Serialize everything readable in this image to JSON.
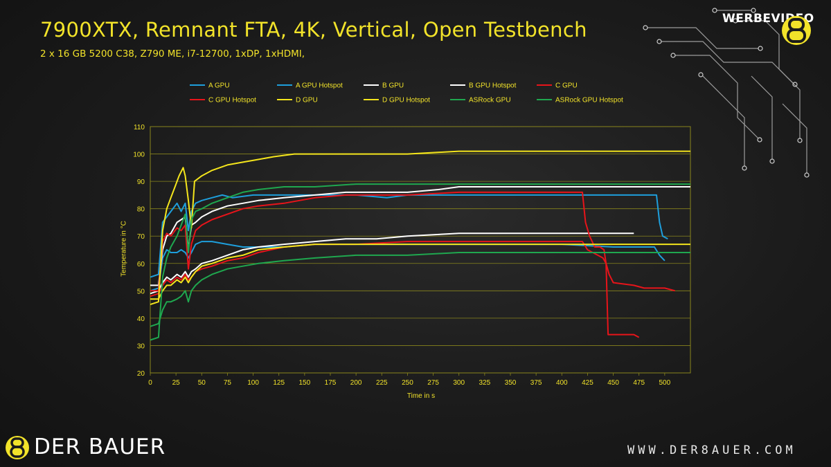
{
  "header": {
    "title": "7900XTX, Remnant FTA, 4K, Vertical, Open Testbench",
    "subtitle": "2 x 16 GB 5200 C38, Z790 ME, i7-12700, 1xDP, 1xHDMI,"
  },
  "watermark": {
    "channel_text": "WERBEVIDEO"
  },
  "footer": {
    "brand_name": "DER BAUER",
    "site": "WWW.DER8AUER.COM"
  },
  "colors": {
    "accent": "#f2e32a",
    "a_gpu": "#1e9fdc",
    "b_gpu": "#ffffff",
    "c_gpu": "#e8141a",
    "d_gpu": "#f5e61c",
    "asrock_gpu": "#1fa84f",
    "grid": "#8a861c"
  },
  "chart_data": {
    "type": "line",
    "title": "",
    "xlabel": "Time in s",
    "ylabel": "Temperature in °C",
    "xlim": [
      0,
      525
    ],
    "ylim": [
      20,
      110
    ],
    "xticks": [
      0,
      25,
      50,
      75,
      100,
      125,
      150,
      175,
      200,
      225,
      250,
      275,
      300,
      325,
      350,
      375,
      400,
      425,
      450,
      475,
      500
    ],
    "yticks": [
      20,
      30,
      40,
      50,
      60,
      70,
      80,
      90,
      100,
      110
    ],
    "grid": "horizontal",
    "legend_position": "top",
    "series": [
      {
        "name": "A GPU",
        "color": "#1e9fdc",
        "dash": false,
        "points": [
          [
            0,
            50
          ],
          [
            8,
            51
          ],
          [
            12,
            62
          ],
          [
            16,
            65
          ],
          [
            20,
            64
          ],
          [
            26,
            64
          ],
          [
            30,
            65
          ],
          [
            34,
            64
          ],
          [
            37,
            62
          ],
          [
            40,
            64
          ],
          [
            44,
            67
          ],
          [
            50,
            68
          ],
          [
            60,
            68
          ],
          [
            75,
            67
          ],
          [
            90,
            66
          ],
          [
            105,
            66
          ],
          [
            130,
            66
          ],
          [
            160,
            67
          ],
          [
            200,
            67
          ],
          [
            250,
            67
          ],
          [
            300,
            67
          ],
          [
            400,
            67
          ],
          [
            450,
            66
          ],
          [
            490,
            66
          ],
          [
            495,
            63
          ],
          [
            500,
            61
          ]
        ]
      },
      {
        "name": "A GPU Hotspot",
        "color": "#1e9fdc",
        "dash": false,
        "points": [
          [
            0,
            55
          ],
          [
            8,
            56
          ],
          [
            12,
            75
          ],
          [
            16,
            77
          ],
          [
            20,
            79
          ],
          [
            26,
            82
          ],
          [
            30,
            79
          ],
          [
            34,
            82
          ],
          [
            37,
            72
          ],
          [
            40,
            79
          ],
          [
            44,
            82
          ],
          [
            50,
            83
          ],
          [
            60,
            84
          ],
          [
            70,
            85
          ],
          [
            80,
            84
          ],
          [
            100,
            85
          ],
          [
            130,
            85
          ],
          [
            160,
            85
          ],
          [
            200,
            85
          ],
          [
            230,
            84
          ],
          [
            250,
            85
          ],
          [
            300,
            85
          ],
          [
            400,
            85
          ],
          [
            450,
            85
          ],
          [
            492,
            85
          ],
          [
            495,
            75
          ],
          [
            498,
            70
          ],
          [
            503,
            69
          ]
        ]
      },
      {
        "name": "B GPU",
        "color": "#ffffff",
        "dash": false,
        "points": [
          [
            0,
            49
          ],
          [
            8,
            50
          ],
          [
            12,
            53
          ],
          [
            16,
            55
          ],
          [
            20,
            54
          ],
          [
            26,
            56
          ],
          [
            30,
            55
          ],
          [
            34,
            57
          ],
          [
            37,
            55
          ],
          [
            40,
            57
          ],
          [
            44,
            58
          ],
          [
            50,
            60
          ],
          [
            60,
            61
          ],
          [
            75,
            63
          ],
          [
            90,
            65
          ],
          [
            105,
            66
          ],
          [
            130,
            67
          ],
          [
            160,
            68
          ],
          [
            190,
            69
          ],
          [
            220,
            69
          ],
          [
            250,
            70
          ],
          [
            300,
            71
          ],
          [
            350,
            71
          ],
          [
            400,
            71
          ],
          [
            430,
            71
          ],
          [
            470,
            71
          ]
        ]
      },
      {
        "name": "B GPU Hotspot",
        "color": "#ffffff",
        "dash": false,
        "points": [
          [
            0,
            52
          ],
          [
            8,
            52
          ],
          [
            12,
            65
          ],
          [
            16,
            70
          ],
          [
            20,
            71
          ],
          [
            26,
            75
          ],
          [
            30,
            76
          ],
          [
            34,
            77
          ],
          [
            37,
            65
          ],
          [
            40,
            74
          ],
          [
            44,
            75
          ],
          [
            50,
            77
          ],
          [
            60,
            79
          ],
          [
            75,
            81
          ],
          [
            90,
            82
          ],
          [
            105,
            83
          ],
          [
            130,
            84
          ],
          [
            160,
            85
          ],
          [
            190,
            86
          ],
          [
            220,
            86
          ],
          [
            250,
            86
          ],
          [
            280,
            87
          ],
          [
            300,
            88
          ],
          [
            400,
            88
          ],
          [
            500,
            88
          ],
          [
            525,
            88
          ]
        ]
      },
      {
        "name": "C GPU",
        "color": "#e8141a",
        "dash": false,
        "points": [
          [
            0,
            48
          ],
          [
            8,
            49
          ],
          [
            12,
            52
          ],
          [
            16,
            54
          ],
          [
            20,
            53
          ],
          [
            26,
            55
          ],
          [
            30,
            54
          ],
          [
            34,
            56
          ],
          [
            37,
            54
          ],
          [
            40,
            55
          ],
          [
            44,
            57
          ],
          [
            50,
            58
          ],
          [
            60,
            59
          ],
          [
            75,
            61
          ],
          [
            90,
            62
          ],
          [
            105,
            64
          ],
          [
            130,
            66
          ],
          [
            160,
            67
          ],
          [
            200,
            67
          ],
          [
            250,
            68
          ],
          [
            300,
            68
          ],
          [
            350,
            68
          ],
          [
            400,
            68
          ],
          [
            420,
            68
          ],
          [
            425,
            65
          ],
          [
            430,
            64
          ],
          [
            435,
            63
          ],
          [
            440,
            62
          ],
          [
            443,
            60
          ],
          [
            446,
            56
          ],
          [
            450,
            53
          ],
          [
            470,
            52
          ],
          [
            480,
            51
          ],
          [
            500,
            51
          ],
          [
            510,
            50
          ]
        ]
      },
      {
        "name": "C GPU Hotspot",
        "color": "#e8141a",
        "dash": false,
        "points": [
          [
            0,
            50
          ],
          [
            8,
            50
          ],
          [
            12,
            68
          ],
          [
            16,
            71
          ],
          [
            20,
            70
          ],
          [
            26,
            73
          ],
          [
            30,
            72
          ],
          [
            34,
            74
          ],
          [
            37,
            58
          ],
          [
            40,
            67
          ],
          [
            44,
            72
          ],
          [
            50,
            74
          ],
          [
            60,
            76
          ],
          [
            75,
            78
          ],
          [
            90,
            80
          ],
          [
            105,
            81
          ],
          [
            130,
            82
          ],
          [
            160,
            84
          ],
          [
            190,
            85
          ],
          [
            220,
            85
          ],
          [
            250,
            85
          ],
          [
            300,
            86
          ],
          [
            350,
            86
          ],
          [
            400,
            86
          ],
          [
            420,
            86
          ],
          [
            423,
            75
          ],
          [
            427,
            70
          ],
          [
            432,
            66
          ],
          [
            437,
            66
          ],
          [
            441,
            65
          ],
          [
            443,
            60
          ],
          [
            445,
            34
          ],
          [
            455,
            34
          ],
          [
            470,
            34
          ],
          [
            475,
            33
          ]
        ]
      },
      {
        "name": "D GPU",
        "color": "#f5e61c",
        "dash": false,
        "points": [
          [
            0,
            47
          ],
          [
            8,
            47
          ],
          [
            12,
            50
          ],
          [
            16,
            52
          ],
          [
            20,
            52
          ],
          [
            26,
            54
          ],
          [
            30,
            53
          ],
          [
            34,
            55
          ],
          [
            37,
            53
          ],
          [
            40,
            55
          ],
          [
            44,
            57
          ],
          [
            50,
            59
          ],
          [
            60,
            60
          ],
          [
            75,
            62
          ],
          [
            90,
            63
          ],
          [
            105,
            65
          ],
          [
            130,
            66
          ],
          [
            160,
            67
          ],
          [
            200,
            67
          ],
          [
            250,
            67
          ],
          [
            300,
            67
          ],
          [
            350,
            67
          ],
          [
            400,
            67
          ],
          [
            450,
            67
          ],
          [
            500,
            67
          ],
          [
            525,
            67
          ]
        ]
      },
      {
        "name": "D GPU Hotspot",
        "color": "#f5e61c",
        "dash": false,
        "points": [
          [
            0,
            45
          ],
          [
            8,
            46
          ],
          [
            12,
            72
          ],
          [
            16,
            80
          ],
          [
            20,
            84
          ],
          [
            24,
            88
          ],
          [
            28,
            92
          ],
          [
            32,
            95
          ],
          [
            34,
            92
          ],
          [
            37,
            83
          ],
          [
            40,
            73
          ],
          [
            43,
            90
          ],
          [
            50,
            92
          ],
          [
            60,
            94
          ],
          [
            75,
            96
          ],
          [
            90,
            97
          ],
          [
            105,
            98
          ],
          [
            120,
            99
          ],
          [
            140,
            100
          ],
          [
            160,
            100
          ],
          [
            200,
            100
          ],
          [
            250,
            100
          ],
          [
            300,
            101
          ],
          [
            350,
            101
          ],
          [
            400,
            101
          ],
          [
            450,
            101
          ],
          [
            500,
            101
          ],
          [
            525,
            101
          ]
        ]
      },
      {
        "name": "ASRock GPU",
        "color": "#1fa84f",
        "dash": false,
        "points": [
          [
            0,
            37
          ],
          [
            8,
            38
          ],
          [
            12,
            43
          ],
          [
            16,
            46
          ],
          [
            20,
            46
          ],
          [
            26,
            47
          ],
          [
            30,
            48
          ],
          [
            34,
            50
          ],
          [
            37,
            46
          ],
          [
            40,
            50
          ],
          [
            44,
            52
          ],
          [
            50,
            54
          ],
          [
            60,
            56
          ],
          [
            75,
            58
          ],
          [
            90,
            59
          ],
          [
            105,
            60
          ],
          [
            130,
            61
          ],
          [
            160,
            62
          ],
          [
            200,
            63
          ],
          [
            250,
            63
          ],
          [
            300,
            64
          ],
          [
            350,
            64
          ],
          [
            400,
            64
          ],
          [
            450,
            64
          ],
          [
            500,
            64
          ],
          [
            525,
            64
          ]
        ]
      },
      {
        "name": "ASRock GPU Hotspot",
        "color": "#1fa84f",
        "dash": false,
        "points": [
          [
            0,
            32
          ],
          [
            8,
            33
          ],
          [
            12,
            55
          ],
          [
            16,
            62
          ],
          [
            20,
            66
          ],
          [
            26,
            70
          ],
          [
            30,
            74
          ],
          [
            34,
            78
          ],
          [
            37,
            64
          ],
          [
            40,
            76
          ],
          [
            44,
            79
          ],
          [
            50,
            80
          ],
          [
            60,
            82
          ],
          [
            75,
            84
          ],
          [
            90,
            86
          ],
          [
            105,
            87
          ],
          [
            130,
            88
          ],
          [
            160,
            88
          ],
          [
            200,
            89
          ],
          [
            250,
            89
          ],
          [
            300,
            89
          ],
          [
            400,
            89
          ],
          [
            450,
            89
          ],
          [
            500,
            89
          ],
          [
            525,
            89
          ]
        ]
      }
    ]
  }
}
